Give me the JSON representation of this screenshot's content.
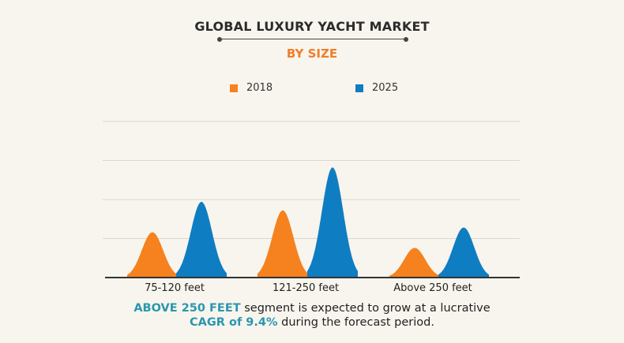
{
  "header": {
    "title": "GLOBAL LUXURY YACHT MARKET",
    "subtitle": "BY SIZE"
  },
  "colors": {
    "2018": "#f5821f",
    "2025": "#0f7dc2",
    "highlight": "#2a97ad",
    "subtitle": "#f07d2a",
    "background": "#f8f5ee"
  },
  "chart_data": {
    "type": "area",
    "title": "GLOBAL LUXURY YACHT MARKET",
    "subtitle": "BY SIZE",
    "categories": [
      "75-120 feet",
      "121-250 feet",
      "Above 250 feet"
    ],
    "series": [
      {
        "name": "2018",
        "values": [
          1.16,
          1.72,
          0.76
        ]
      },
      {
        "name": "2025",
        "values": [
          1.94,
          2.82,
          1.28
        ]
      }
    ],
    "ylim": [
      0,
      4
    ],
    "grid": true,
    "legend": "top",
    "xlabel": "",
    "ylabel": ""
  },
  "footer": {
    "highlight1": "ABOVE 250 FEET",
    "text1": " segment is expected to grow at a lucrative",
    "highlight2": "CAGR of 9.4%",
    "text2": " during the forecast period."
  }
}
